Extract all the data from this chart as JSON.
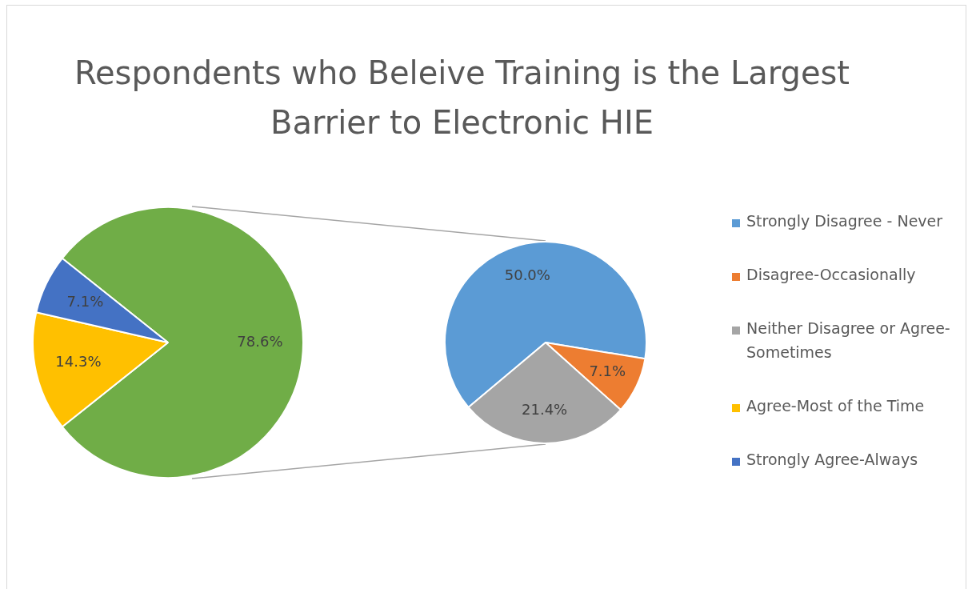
{
  "chart_data": [
    {
      "type": "pie",
      "title": "Respondents who Beleive Training is the Largest Barrier to Electronic HIE",
      "categories": [
        null,
        "Agree-Most of the Time",
        "Strongly Agree-Always"
      ],
      "values": [
        78.6,
        14.3,
        7.1
      ],
      "colors": [
        "#70ad47",
        "#ffc000",
        "#4472c4"
      ],
      "value_labels": [
        "78.6%",
        "14.3%",
        "7.1%"
      ],
      "legend": "right"
    },
    {
      "type": "pie",
      "categories": [
        "Strongly Disagree - Never",
        "Disagree-Occasionally",
        "Neither Disagree or Agree-Sometimes"
      ],
      "values": [
        50.0,
        7.1,
        21.4
      ],
      "value_labels": [
        "50.0%",
        "7.1%",
        "21.4%"
      ],
      "colors": [
        "#5b9bd5",
        "#ed7d31",
        "#a5a5a5"
      ],
      "legend": "right"
    }
  ]
}
